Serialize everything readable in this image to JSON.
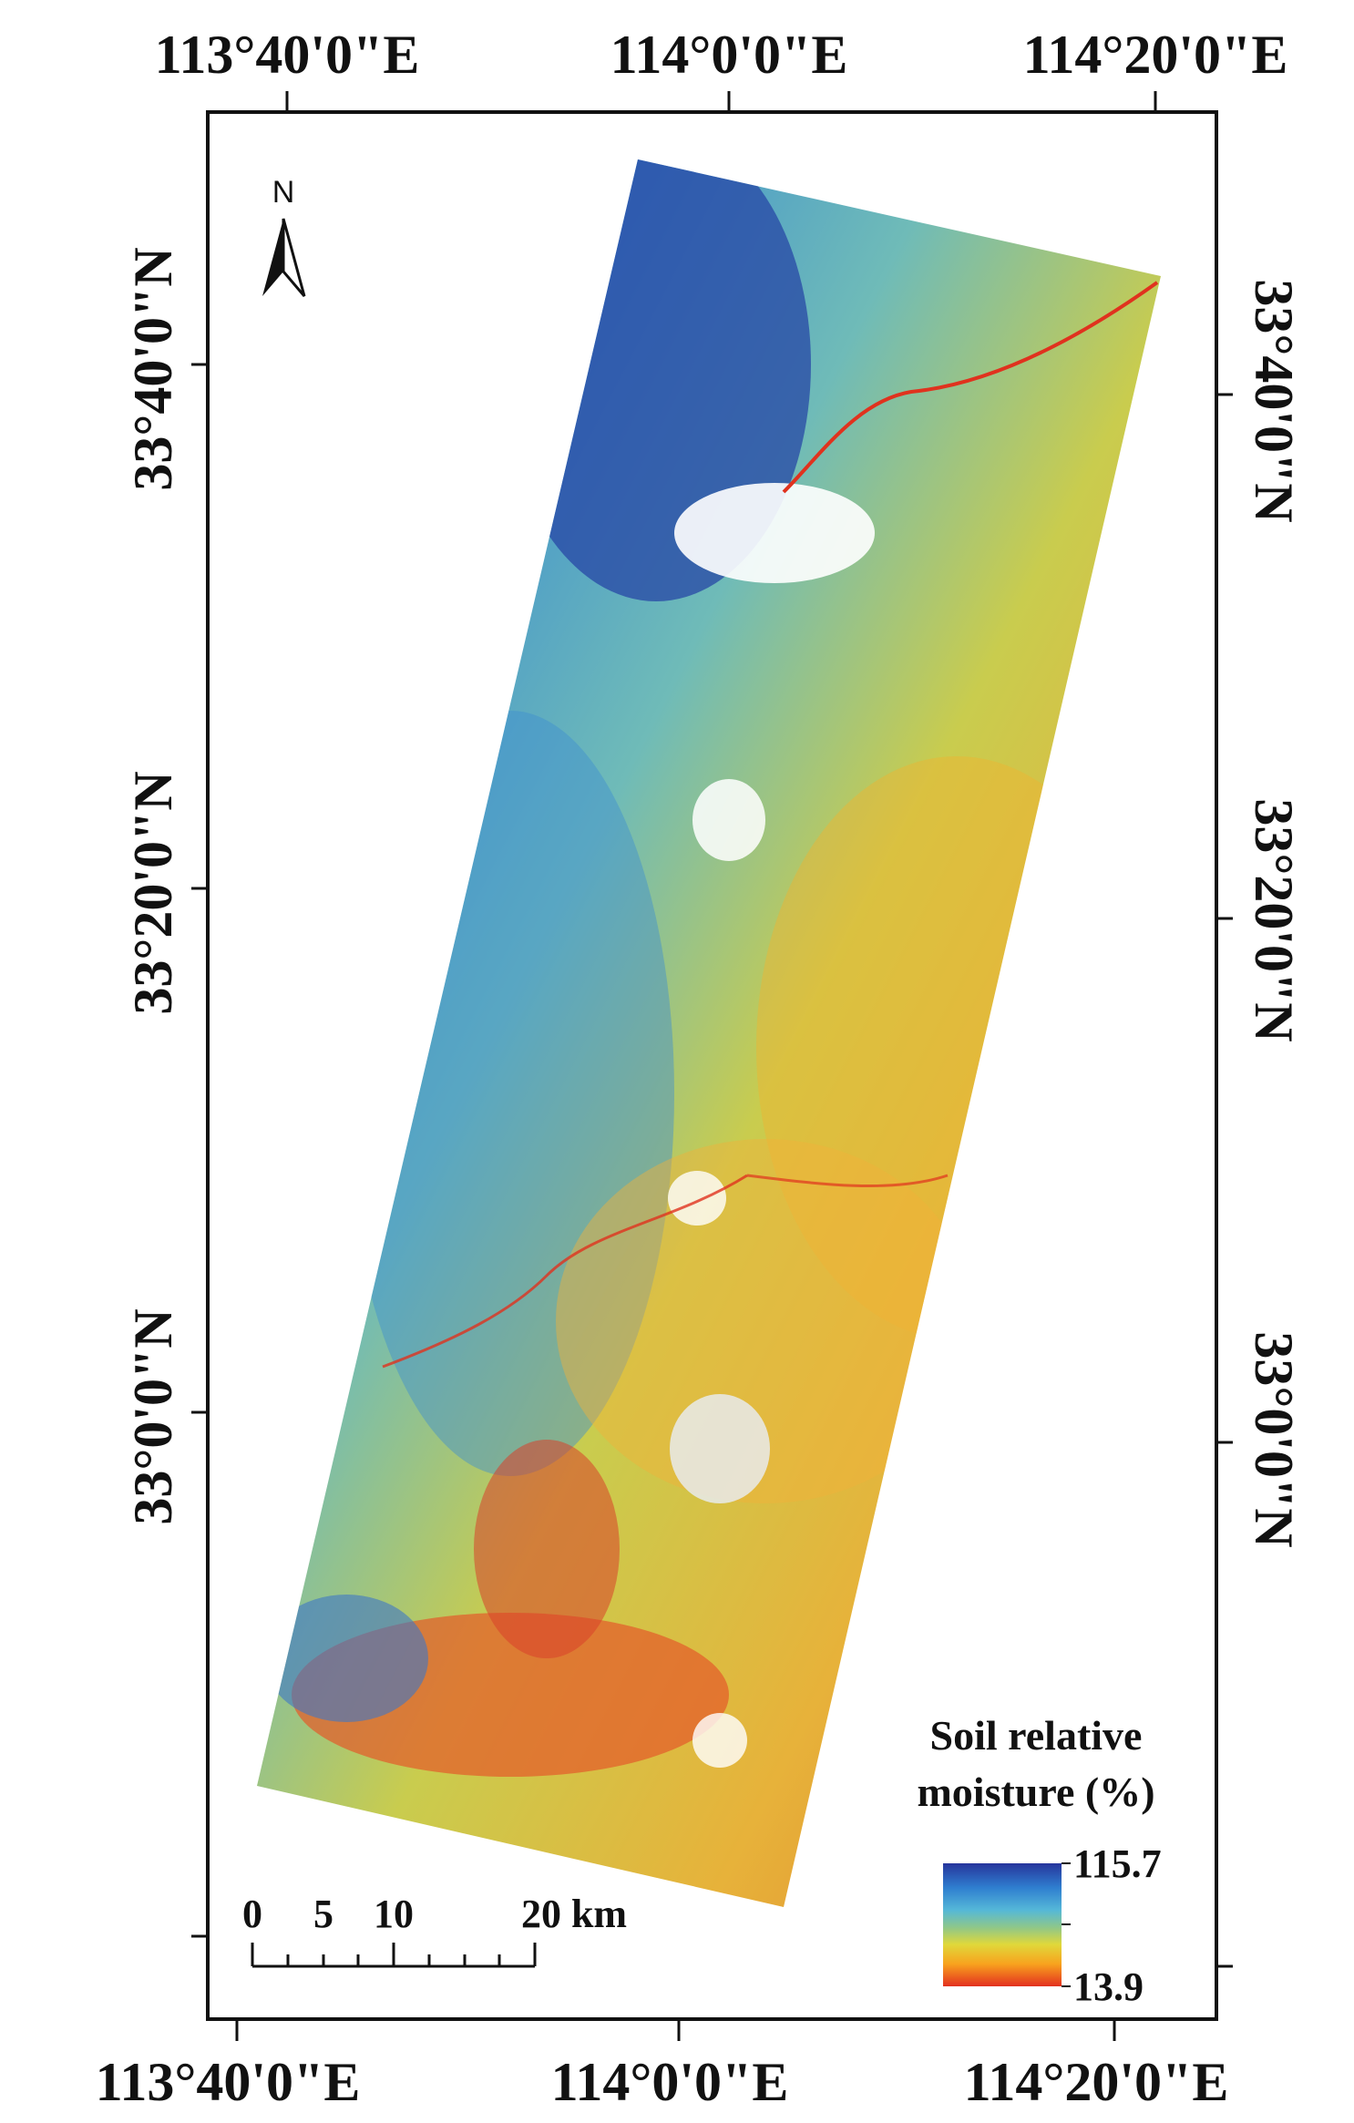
{
  "map": {
    "longitude_labels_top": [
      "113°40'0\"E",
      "114°0'0\"E",
      "114°20'0\"E"
    ],
    "longitude_labels_bottom": [
      "113°40'0\"E",
      "114°0'0\"E",
      "114°20'0\"E"
    ],
    "latitude_labels_left": [
      "33°40'0\"N",
      "33°20'0\"N",
      "33°0'0\"N"
    ],
    "latitude_labels_right": [
      "33°40'0\"N",
      "33°20'0\"N",
      "33°0'0\"N"
    ],
    "north_arrow_label": "N",
    "scale_bar": {
      "ticks": [
        "0",
        "5",
        "10",
        "20 km"
      ]
    },
    "legend": {
      "title_line1": "Soil relative",
      "title_line2": "moisture (%)",
      "max_label": "115.7",
      "min_label": "13.9",
      "colors": [
        "#2a3fa6",
        "#2f7fd0",
        "#55b8d8",
        "#8ec78a",
        "#d8d53c",
        "#f8a21e",
        "#e8331f"
      ]
    }
  }
}
